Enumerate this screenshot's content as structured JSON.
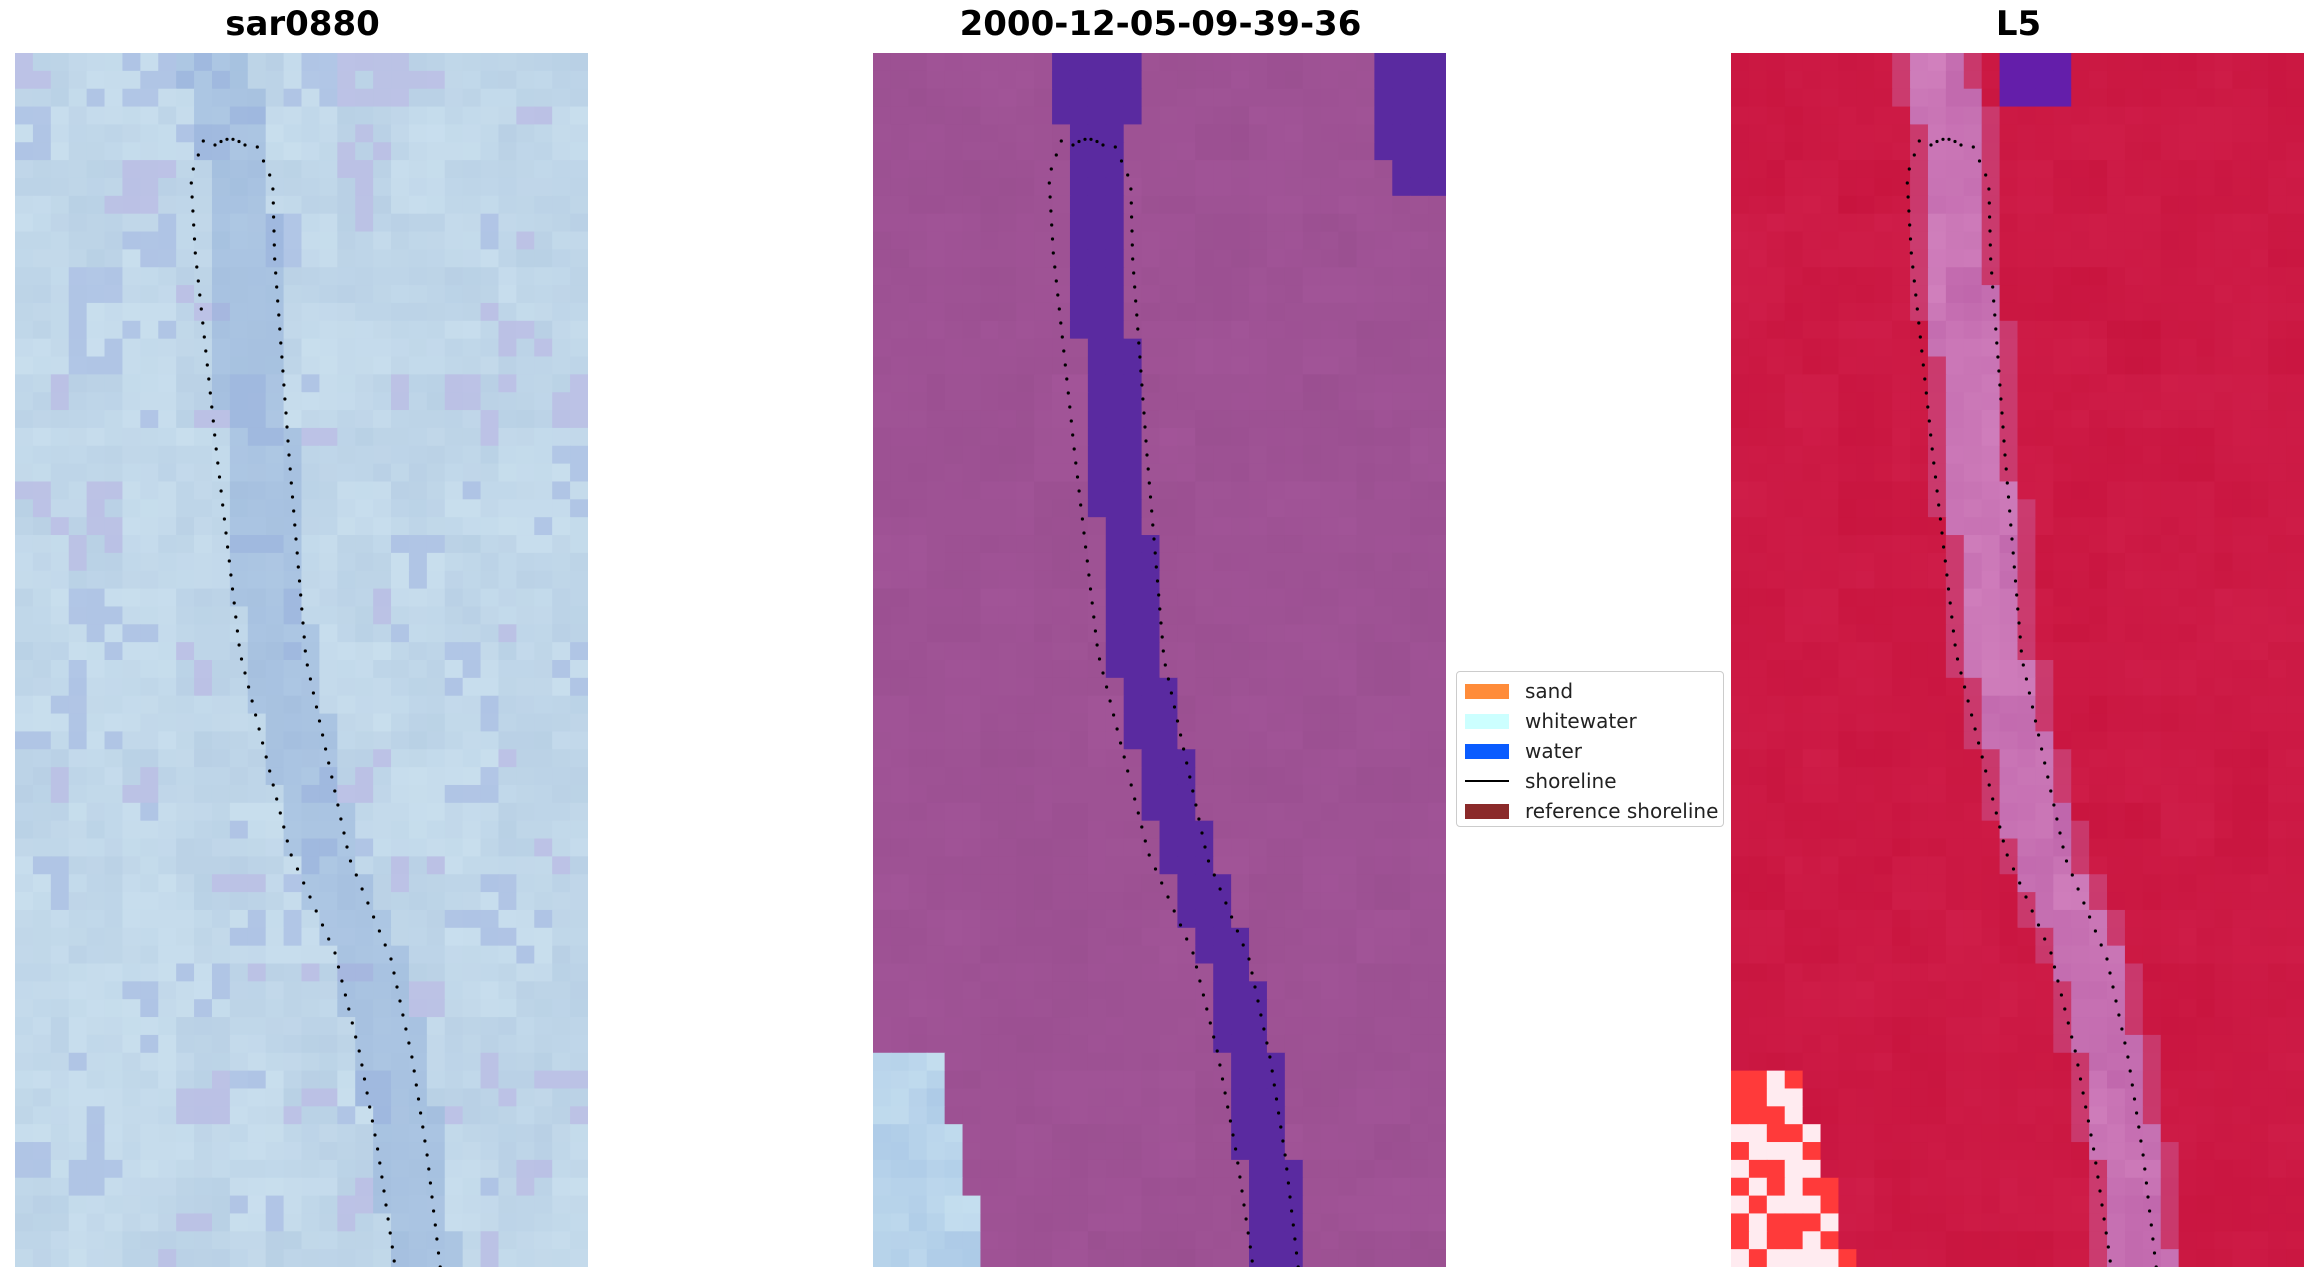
{
  "panels": [
    {
      "id": "sar",
      "title": "sar0880"
    },
    {
      "id": "classified",
      "title": "2000-12-05-09-39-36"
    },
    {
      "id": "l5",
      "title": "L5"
    }
  ],
  "legend": {
    "items": [
      {
        "label": "sand",
        "color": "#ff8c3a",
        "kind": "patch"
      },
      {
        "label": "whitewater",
        "color": "#ccffff",
        "kind": "patch"
      },
      {
        "label": "water",
        "color": "#0a5cff",
        "kind": "patch"
      },
      {
        "label": "shoreline",
        "color": "#000000",
        "kind": "line"
      },
      {
        "label": "reference shoreline",
        "color": "#8b2a2a",
        "kind": "patch"
      }
    ]
  },
  "colors": {
    "sar_base": "#b3cbe2",
    "classified_base": "#9a4f90",
    "classified_water": "#5a2aa0",
    "l5_base": "#c8143e",
    "l5_bright": "#ff3a3a",
    "shoreline_dots": "#000000"
  }
}
